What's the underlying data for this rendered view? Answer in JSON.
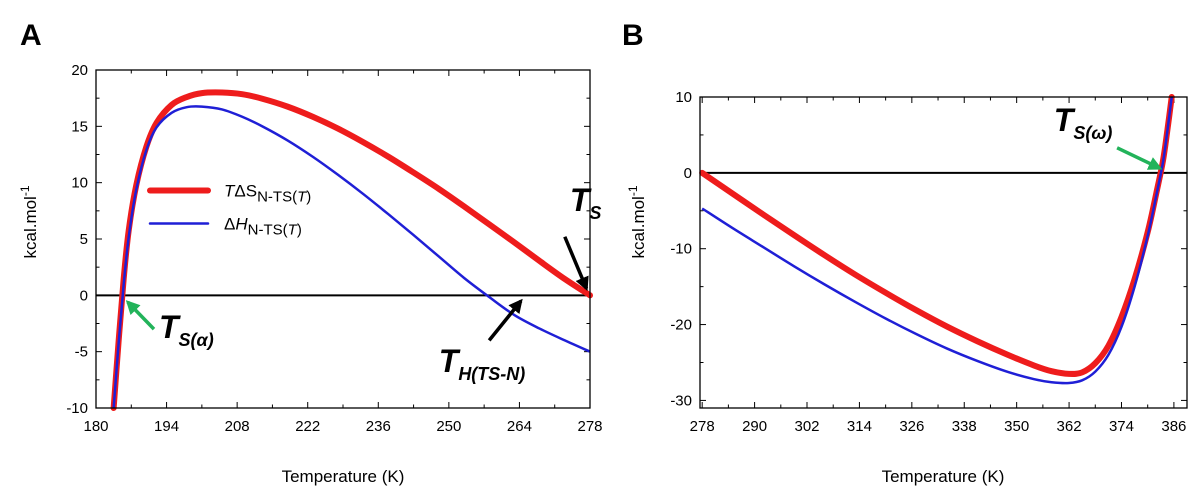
{
  "colors": {
    "tds": "#ee1c1c",
    "dh": "#1f1fd6",
    "zero_line": "#000000",
    "arrow_black": "#000000",
    "arrow_green": "#22b35a"
  },
  "chart_data": [
    {
      "panel": "A",
      "type": "line",
      "xlabel": "Temperature (K)",
      "ylabel": "kcal.mol-1",
      "ylabel_parts": {
        "base": "kcal.mol",
        "sup": "-1"
      },
      "xlim": [
        180,
        278
      ],
      "ylim": [
        -10,
        20
      ],
      "x_ticks": [
        180,
        194,
        208,
        222,
        236,
        250,
        264,
        278
      ],
      "y_ticks": [
        -10,
        -5,
        0,
        5,
        10,
        15,
        20
      ],
      "zero_line": 0,
      "legend": {
        "placement": "center-left",
        "entries": [
          {
            "series": "tds",
            "parts": [
              "T",
              "ΔS",
              "N-TS(",
              "T",
              ")"
            ]
          },
          {
            "series": "dh",
            "parts": [
              "Δ",
              "H",
              "N-TS(",
              "T",
              ")"
            ]
          }
        ]
      },
      "series": [
        {
          "key": "tds",
          "x": [
            183.5,
            184.5,
            185.5,
            186.5,
            188,
            190,
            192,
            195,
            198,
            201,
            205,
            209,
            213,
            218,
            223,
            228,
            233,
            238,
            243,
            248,
            253,
            258,
            263,
            268,
            273,
            278
          ],
          "values": [
            -10,
            -4,
            1.5,
            5.8,
            9.8,
            13.2,
            15.3,
            16.9,
            17.6,
            17.95,
            18.0,
            17.85,
            17.45,
            16.75,
            15.85,
            14.8,
            13.6,
            12.3,
            10.9,
            9.45,
            7.9,
            6.3,
            4.7,
            3.05,
            1.45,
            0
          ]
        },
        {
          "key": "dh",
          "x": [
            183.5,
            184.5,
            185.5,
            186.5,
            188,
            190,
            192,
            195,
            198,
            201,
            205,
            209,
            213,
            218,
            223,
            228,
            233,
            238,
            243,
            248,
            253,
            258,
            263,
            268,
            273,
            278
          ],
          "values": [
            -10,
            -4.2,
            1.0,
            5.2,
            9.4,
            12.9,
            14.9,
            16.2,
            16.7,
            16.75,
            16.5,
            15.85,
            15.0,
            13.75,
            12.3,
            10.7,
            9.0,
            7.2,
            5.35,
            3.45,
            1.55,
            -0.15,
            -1.75,
            -2.95,
            -4.0,
            -5.0
          ]
        }
      ],
      "annotations": [
        {
          "text": {
            "main": "T",
            "sub": "S"
          },
          "label_at": [
            274,
            7.5
          ],
          "arrow_from": [
            273,
            5.2
          ],
          "arrow_to": [
            277.3,
            0.6
          ],
          "color": "arrow_black"
        },
        {
          "text": {
            "main": "T",
            "sub": "H(TS-N)"
          },
          "label_at": [
            248,
            -6.8
          ],
          "arrow_from": [
            258,
            -4.0
          ],
          "arrow_to": [
            264.3,
            -0.5
          ],
          "color": "arrow_black"
        },
        {
          "text": {
            "main": "T",
            "sub": "S(α)"
          },
          "label_at": [
            192.5,
            -3.8
          ],
          "arrow_from": [
            191.5,
            -3.0
          ],
          "arrow_to": [
            186.3,
            -0.6
          ],
          "color": "arrow_green"
        }
      ]
    },
    {
      "panel": "B",
      "type": "line",
      "xlabel": "Temperature (K)",
      "ylabel": "kcal.mol-1",
      "ylabel_parts": {
        "base": "kcal.mol",
        "sup": "-1"
      },
      "xlim": [
        277.5,
        389
      ],
      "ylim": [
        -31,
        10
      ],
      "x_ticks": [
        278,
        290,
        302,
        314,
        326,
        338,
        350,
        362,
        374,
        386
      ],
      "y_ticks": [
        -30,
        -20,
        -10,
        0,
        10
      ],
      "zero_line": 0,
      "series": [
        {
          "key": "tds",
          "x": [
            278,
            285,
            292,
            299,
            306,
            313,
            320,
            327,
            334,
            341,
            348,
            354,
            358,
            362,
            365,
            368,
            371,
            374,
            377,
            380,
            382,
            383.5,
            384.5,
            385.5
          ],
          "values": [
            0,
            -2.75,
            -5.5,
            -8.2,
            -10.85,
            -13.4,
            -15.8,
            -18.1,
            -20.25,
            -22.2,
            -24.0,
            -25.4,
            -26.15,
            -26.5,
            -26.3,
            -25.1,
            -22.8,
            -19.0,
            -14.0,
            -7.8,
            -2.6,
            1.6,
            5.6,
            10
          ]
        },
        {
          "key": "dh",
          "x": [
            278,
            285,
            292,
            299,
            306,
            313,
            320,
            327,
            334,
            341,
            348,
            354,
            358,
            362,
            365,
            368,
            371,
            374,
            377,
            380,
            382,
            383.5,
            384.5,
            385.5
          ],
          "values": [
            -4.7,
            -7.3,
            -9.8,
            -12.3,
            -14.7,
            -17.0,
            -19.2,
            -21.25,
            -23.15,
            -24.8,
            -26.25,
            -27.2,
            -27.6,
            -27.7,
            -27.35,
            -26.2,
            -24.0,
            -20.3,
            -15.0,
            -8.3,
            -2.9,
            1.4,
            5.5,
            10
          ]
        }
      ],
      "annotations": [
        {
          "text": {
            "main": "T",
            "sub": "S(ω)"
          },
          "label_at": [
            358.5,
            5.5
          ],
          "arrow_from": [
            373,
            3.3
          ],
          "arrow_to": [
            382.8,
            0.6
          ],
          "color": "arrow_green"
        }
      ]
    }
  ]
}
